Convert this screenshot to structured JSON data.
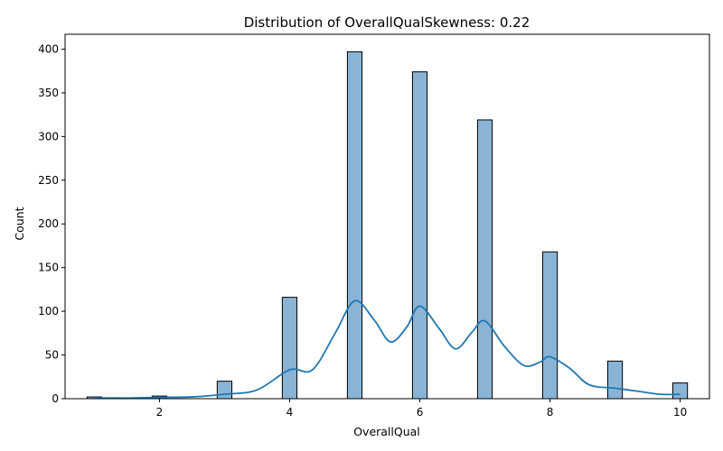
{
  "chart_data": {
    "type": "bar",
    "title": "Distribution of OverallQualSkewness: 0.22",
    "xlabel": "OverallQual",
    "ylabel": "Count",
    "xlim": [
      0.55,
      10.45
    ],
    "ylim": [
      0,
      417
    ],
    "xticks": [
      2,
      4,
      6,
      8,
      10
    ],
    "yticks": [
      0,
      50,
      100,
      150,
      200,
      250,
      300,
      350,
      400
    ],
    "bin_width": 0.225,
    "bars": [
      {
        "x": 1,
        "count": 2
      },
      {
        "x": 2,
        "count": 3
      },
      {
        "x": 3,
        "count": 20
      },
      {
        "x": 4,
        "count": 116
      },
      {
        "x": 5,
        "count": 397
      },
      {
        "x": 6,
        "count": 374
      },
      {
        "x": 7,
        "count": 319
      },
      {
        "x": 8,
        "count": 168
      },
      {
        "x": 9,
        "count": 43
      },
      {
        "x": 10,
        "count": 18
      }
    ],
    "kde": {
      "x": [
        1.0,
        1.5,
        2.0,
        2.5,
        3.0,
        3.5,
        4.0,
        4.35,
        4.7,
        5.0,
        5.3,
        5.55,
        5.8,
        6.0,
        6.3,
        6.55,
        6.8,
        7.0,
        7.3,
        7.6,
        7.85,
        8.0,
        8.3,
        8.6,
        9.0,
        9.4,
        9.7,
        10.0
      ],
      "y": [
        1,
        0.8,
        1.5,
        2,
        5,
        10,
        33,
        33,
        75,
        112,
        90,
        65,
        82,
        106,
        80,
        57,
        76,
        89,
        60,
        38,
        42,
        48,
        35,
        16,
        12,
        8,
        5,
        5
      ]
    },
    "colors": {
      "bar_fill": "#89b4d6",
      "bar_edge": "#000000",
      "kde_line": "#1f77b4",
      "axes": "#000000"
    },
    "grid": false,
    "legend": "none"
  }
}
